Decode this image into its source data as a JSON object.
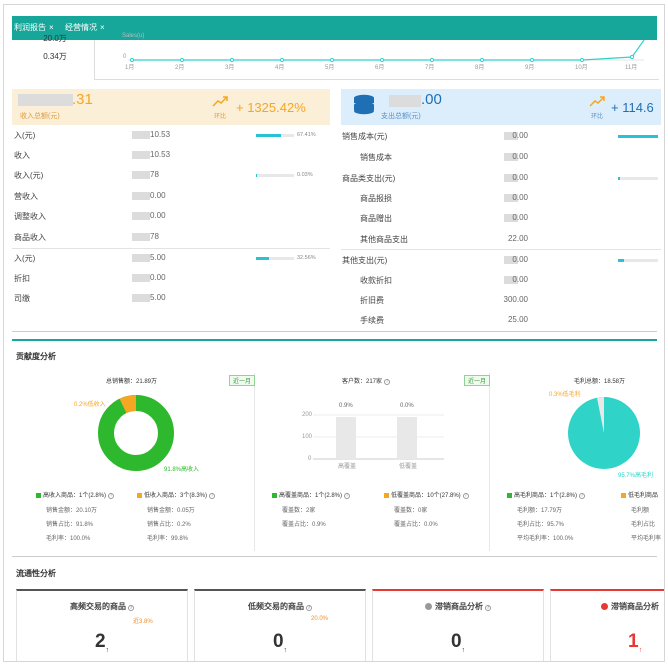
{
  "tabs": [
    {
      "label": "利润报告",
      "close": "×"
    },
    {
      "label": "经营情况",
      "close": "×"
    }
  ],
  "top_left": {
    "value1": "20.0万",
    "value2": "0.34万"
  },
  "top_axis": {
    "label": "Sales(u)",
    "zero": "0",
    "months": [
      "1月",
      "2月",
      "3月",
      "4月",
      "5月",
      "6月",
      "7月",
      "8月",
      "9月",
      "10月",
      "11月"
    ]
  },
  "summary_left": {
    "amount": ".31",
    "sublabel": "收入总额(元)",
    "trend_value": "+ 1325.42%",
    "trend_label": "环比"
  },
  "summary_right": {
    "amount": ".00",
    "sublabel": "支出总额(元)",
    "trend_value": "+ 114.6",
    "trend_label": "环比"
  },
  "left_rows": [
    {
      "label": "入(元)",
      "value": "10.53",
      "pct": "67.41%",
      "fill": 0.67
    },
    {
      "label": "收入",
      "value": "10.53"
    },
    {
      "label": "收入(元)",
      "value": "78",
      "pct": "0.03%",
      "fill": 0.03
    },
    {
      "label": "营收入",
      "value": "0.00"
    },
    {
      "label": "调整收入",
      "value": "0.00"
    },
    {
      "label": "商品收入",
      "value": "78"
    },
    {
      "label": "入(元)",
      "value": "5.00",
      "pct": "32.56%",
      "fill": 0.33
    },
    {
      "label": "折扣",
      "value": "0.00"
    },
    {
      "label": "司缴",
      "value": "5.00"
    }
  ],
  "right_rows": [
    {
      "label": "销售成本(元)",
      "value": "0.00",
      "fill": 1.0
    },
    {
      "label": "销售成本",
      "value": "0.00"
    },
    {
      "label": "商品类支出(元)",
      "value": "0.00",
      "fill": 0.04
    },
    {
      "label": "商品报损",
      "value": "0.00"
    },
    {
      "label": "商品赠出",
      "value": "0.00"
    },
    {
      "label": "其他商品支出",
      "value": "22.00"
    },
    {
      "label": "其他支出(元)",
      "value": "0.00",
      "fill": 0.15
    },
    {
      "label": "收款折扣",
      "value": "0.00"
    },
    {
      "label": "折旧费",
      "value": "300.00"
    },
    {
      "label": "手续费",
      "value": "25.00"
    }
  ],
  "contribution": {
    "title": "贡献度分析",
    "sales_total": "总销售额：21.89万",
    "customers": "客户数：217家",
    "gross_total": "毛利总额：18.58万",
    "tag": "近一月",
    "pie1_low_label": "0.2%低收入",
    "pie1_high_label": "91.8%高收入",
    "bar_labels": [
      "0.9%",
      "0.0%"
    ],
    "bar_categories": [
      "高覆盖",
      "低覆盖"
    ],
    "bar_axis": [
      "200",
      "100",
      "0"
    ],
    "pie3_low_label": "0.3%低毛利",
    "pie3_high_label": "95.7%高毛利",
    "block1": {
      "high": "高收入商品：1个(2.8%)",
      "low": "低收入商品：3个(8.3%)",
      "h1": "销售金额：20.10万",
      "h2": "销售占比：91.8%",
      "h3": "毛利率：100.0%",
      "l1": "销售金额：0.05万",
      "l2": "销售占比：0.2%",
      "l3": "毛利率：99.8%"
    },
    "block2": {
      "high": "高覆盖商品：1个(2.8%)",
      "low": "低覆盖商品：10个(27.8%)",
      "h1": "覆盖数：2家",
      "h2": "覆盖占比：0.9%",
      "l1": "覆盖数：0家",
      "l2": "覆盖占比：0.0%"
    },
    "block3": {
      "high": "高毛利商品：1个(2.8%)",
      "low": "低毛利商品",
      "h1": "毛利额：17.79万",
      "h2": "毛利占比：95.7%",
      "h3": "平均毛利率：100.0%",
      "l1": "毛利额",
      "l2": "毛利占比",
      "l3": "平均毛利率"
    }
  },
  "flow": {
    "title": "流通性分析",
    "cards": [
      {
        "title": "高频交易的商品",
        "pct": "近3.8%",
        "num": "2"
      },
      {
        "title": "低频交易的商品",
        "pct": "20.0%",
        "num": "0"
      },
      {
        "title": "滞销商品分析",
        "num": "0"
      },
      {
        "title": "滞销商品分析",
        "num": "1"
      }
    ],
    "arrow": "↑"
  },
  "colors": {
    "teal": "#17a79a",
    "orange": "#f5a623",
    "green": "#2db82d",
    "cyan": "#2fd3c8",
    "red": "#e53935"
  }
}
